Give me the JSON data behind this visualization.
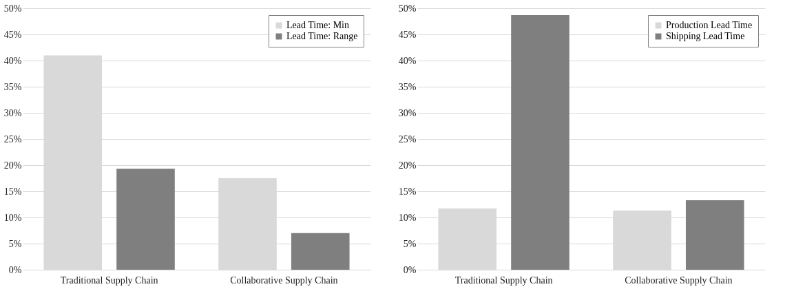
{
  "chart_data": [
    {
      "type": "bar",
      "categories": [
        "Traditional Supply Chain",
        "Collaborative Supply Chain"
      ],
      "series": [
        {
          "name": "Lead Time: Min",
          "color": "#d9d9d9",
          "values": [
            41,
            17.5
          ]
        },
        {
          "name": "Lead Time: Range",
          "color": "#7f7f7f",
          "values": [
            19.3,
            7
          ]
        }
      ],
      "ylim": [
        0,
        50
      ],
      "yticks": [
        {
          "value": 0,
          "label": "0%"
        },
        {
          "value": 5,
          "label": "5%"
        },
        {
          "value": 10,
          "label": "10%"
        },
        {
          "value": 15,
          "label": "15%"
        },
        {
          "value": 20,
          "label": "20%"
        },
        {
          "value": 25,
          "label": "25%"
        },
        {
          "value": 30,
          "label": "30%"
        },
        {
          "value": 35,
          "label": "35%"
        },
        {
          "value": 40,
          "label": "40%"
        },
        {
          "value": 45,
          "label": "45%"
        },
        {
          "value": 50,
          "label": "50%"
        }
      ],
      "grid": "y",
      "legend": "top right"
    },
    {
      "type": "bar",
      "categories": [
        "Traditional Supply Chain",
        "Collaborative Supply Chain"
      ],
      "series": [
        {
          "name": "Production Lead Time",
          "color": "#d9d9d9",
          "values": [
            11.7,
            11.3
          ]
        },
        {
          "name": "Shipping Lead Time",
          "color": "#7f7f7f",
          "values": [
            48.7,
            13.3
          ]
        }
      ],
      "ylim": [
        0,
        50
      ],
      "yticks": [
        {
          "value": 0,
          "label": "0%"
        },
        {
          "value": 5,
          "label": "5%"
        },
        {
          "value": 10,
          "label": "10%"
        },
        {
          "value": 15,
          "label": "15%"
        },
        {
          "value": 20,
          "label": "20%"
        },
        {
          "value": 25,
          "label": "25%"
        },
        {
          "value": 30,
          "label": "30%"
        },
        {
          "value": 35,
          "label": "35%"
        },
        {
          "value": 40,
          "label": "40%"
        },
        {
          "value": 45,
          "label": "45%"
        },
        {
          "value": 50,
          "label": "50%"
        }
      ],
      "grid": "y",
      "legend": "top right"
    }
  ]
}
